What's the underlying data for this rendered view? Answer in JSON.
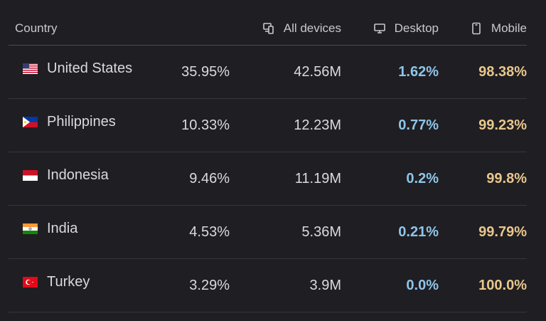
{
  "colors": {
    "background": "#1f1e23",
    "desktop_accent": "#8fc5e8",
    "mobile_accent": "#e9c78c"
  },
  "header": {
    "country": "Country",
    "all_devices": "All devices",
    "desktop": "Desktop",
    "mobile": "Mobile",
    "all_devices_icon": "devices-icon",
    "desktop_icon": "desktop-icon",
    "mobile_icon": "mobile-phone-icon"
  },
  "rows": [
    {
      "flag": "us-flag-icon",
      "country": "United States",
      "share": "35.95%",
      "all_devices": "42.56M",
      "desktop": "1.62%",
      "mobile": "98.38%"
    },
    {
      "flag": "ph-flag-icon",
      "country": "Philippines",
      "share": "10.33%",
      "all_devices": "12.23M",
      "desktop": "0.77%",
      "mobile": "99.23%"
    },
    {
      "flag": "id-flag-icon",
      "country": "Indonesia",
      "share": "9.46%",
      "all_devices": "11.19M",
      "desktop": "0.2%",
      "mobile": "99.8%"
    },
    {
      "flag": "in-flag-icon",
      "country": "India",
      "share": "4.53%",
      "all_devices": "5.36M",
      "desktop": "0.21%",
      "mobile": "99.79%"
    },
    {
      "flag": "tr-flag-icon",
      "country": "Turkey",
      "share": "3.29%",
      "all_devices": "3.9M",
      "desktop": "0.0%",
      "mobile": "100.0%"
    }
  ]
}
